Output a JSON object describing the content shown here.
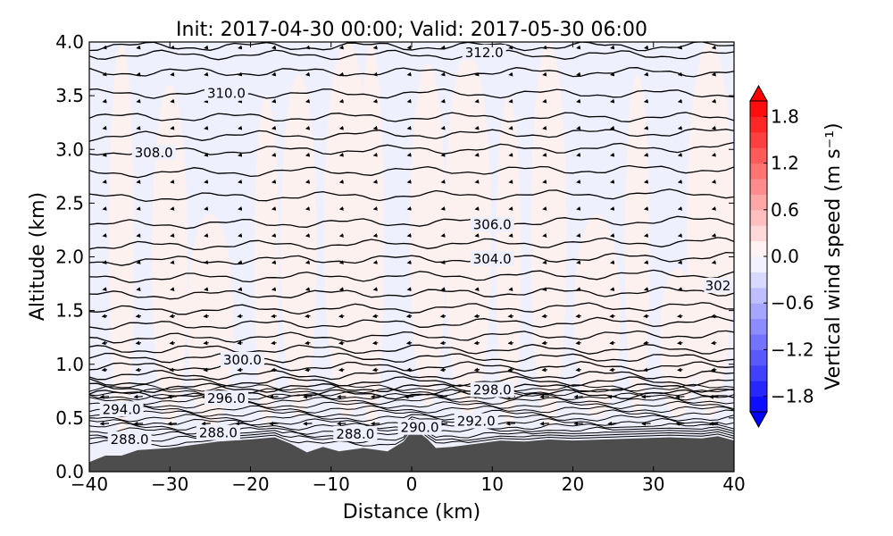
{
  "chart_data": {
    "type": "contour",
    "title": "Init: 2017-04-30 00:00; Valid: 2017-05-30 06:00",
    "xlabel": "Distance (km)",
    "ylabel": "Altitude (km)",
    "xlim": [
      -40,
      40
    ],
    "ylim": [
      0,
      4.0
    ],
    "x_ticks": [
      -40,
      -30,
      -20,
      -10,
      0,
      10,
      20,
      30,
      40
    ],
    "x_tick_labels": [
      "−40",
      "−30",
      "−20",
      "−10",
      "0",
      "10",
      "20",
      "30",
      "40"
    ],
    "y_ticks": [
      0,
      0.5,
      1.0,
      1.5,
      2.0,
      2.5,
      3.0,
      3.5,
      4.0
    ],
    "y_tick_labels": [
      "0.0",
      "0.5",
      "1.0",
      "1.5",
      "2.0",
      "2.5",
      "3.0",
      "3.5",
      "4.0"
    ],
    "colorbar": {
      "label": "Vertical wind speed (m s⁻¹)",
      "range": [
        -2.0,
        2.0
      ],
      "ticks": [
        1.8,
        1.2,
        0.6,
        0.0,
        -0.6,
        -1.2,
        -1.8
      ],
      "tick_labels": [
        "1.8",
        "1.2",
        "0.6",
        "0.0",
        "−0.6",
        "−1.2",
        "−1.8"
      ],
      "colormap": "bwr",
      "levels": 20
    },
    "colors": {
      "terrain": "#4d4d4d",
      "positive_w": "#ff0000",
      "negative_w": "#0000ff",
      "background_field": "#eef0fd"
    },
    "contour_lines": [
      {
        "label": "288.0",
        "x": -35,
        "y": 0.3
      },
      {
        "label": "288.0",
        "x": -24,
        "y": 0.36
      },
      {
        "label": "288.0",
        "x": -7,
        "y": 0.35
      },
      {
        "label": "290.0",
        "x": 1,
        "y": 0.41
      },
      {
        "label": "292.0",
        "x": 8,
        "y": 0.47
      },
      {
        "label": "294.0",
        "x": -36,
        "y": 0.58
      },
      {
        "label": "296.0",
        "x": -23,
        "y": 0.68
      },
      {
        "label": "298.0",
        "x": 10,
        "y": 0.76
      },
      {
        "label": "300.0",
        "x": -21,
        "y": 1.04
      },
      {
        "label": "302",
        "x": 38,
        "y": 1.73
      },
      {
        "label": "304.0",
        "x": 10,
        "y": 1.98
      },
      {
        "label": "306.0",
        "x": 10,
        "y": 2.3
      },
      {
        "label": "308.0",
        "x": -32,
        "y": 2.97
      },
      {
        "label": "310.0",
        "x": -23,
        "y": 3.52
      },
      {
        "label": "312.0",
        "x": 9,
        "y": 3.9
      }
    ]
  }
}
